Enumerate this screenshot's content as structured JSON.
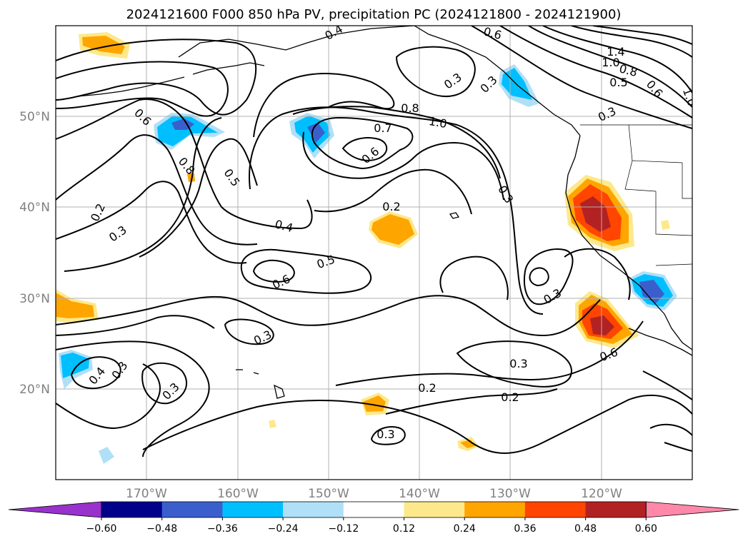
{
  "title": "2024121600 F000 850 hPa PV, precipitation PC (2024121800 - 2024121900)",
  "map": {
    "longitude_labels": [
      "170°W",
      "160°W",
      "150°W",
      "140°W",
      "130°W",
      "120°W"
    ],
    "latitude_labels": [
      "50°N",
      "40°N",
      "30°N",
      "20°N"
    ],
    "grid": true
  },
  "contour_labels": [
    "0.4",
    "0.6",
    "1.4",
    "1.0",
    "0.8",
    "0.5",
    "0.6",
    "1.0",
    "0.3",
    "0.3",
    "0.3",
    "0.6",
    "0.8",
    "0.5",
    "0.8",
    "0.7",
    "1.0",
    "0.6",
    "0.3",
    "0.2",
    "0.3",
    "0.2",
    "0.4",
    "0.5",
    "0.6",
    "0.3",
    "0.3",
    "0.4",
    "0.3",
    "0.3",
    "0.6",
    "0.3",
    "0.2",
    "0.2",
    "0.3"
  ],
  "colorbar": {
    "ticks": [
      "−0.60",
      "−0.48",
      "−0.36",
      "−0.24",
      "−0.12",
      "0.12",
      "0.24",
      "0.36",
      "0.48",
      "0.60"
    ],
    "colors": [
      "#9932cc",
      "#00008b",
      "#3a5fcd",
      "#00bfff",
      "#b0e0f8",
      "#ffffff",
      "#fde98b",
      "#ffa500",
      "#ff4500",
      "#b22222",
      "#ff88aa"
    ]
  }
}
